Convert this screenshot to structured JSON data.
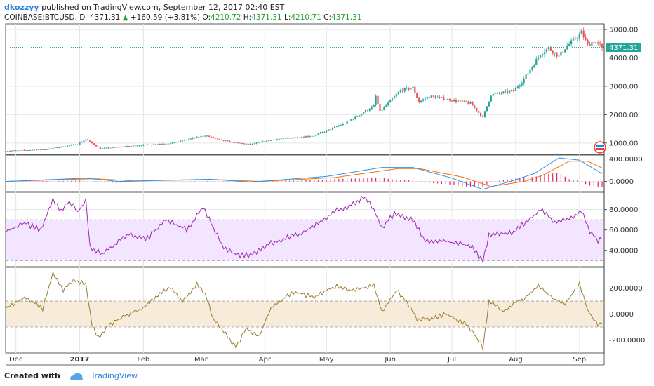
{
  "header": {
    "author": "dkozzyy",
    "published_text": "published on TradingView.com, September 12, 2017 02:40 EST",
    "symbol": "COINBASE:BTCUSD, D",
    "last": "4371.31",
    "change": "+160.59 (+3.81%)",
    "o_label": "O:",
    "o": "4210.72",
    "h_label": "H:",
    "h": "4371.31",
    "l_label": "L:",
    "l": "4210.71",
    "c_label": "C:",
    "c": "4371.31"
  },
  "footer": {
    "created_with": "Created with",
    "brand": "TradingView"
  },
  "colors": {
    "up": "#26a69a",
    "down": "#ef5350",
    "macd": "#2196f3",
    "signal": "#ff6d00",
    "hist": "#e91e63",
    "rsi": "#9c27b0",
    "rsi_band": "#f3e5ff",
    "cci": "#9c7a2c",
    "cci_band": "#f7ecd9",
    "last_price": "#26a69a"
  },
  "chart_data": [
    {
      "type": "candlestick",
      "name": "price",
      "y_ticks": [
        "1000.00",
        "2000.00",
        "3000.00",
        "4000.00",
        "5000.00"
      ],
      "y_range": [
        600,
        5200
      ],
      "last_price_label": "4371.31",
      "last_price": 4371.31,
      "x_labels": [
        "Dec",
        "2017",
        "Feb",
        "Mar",
        "Apr",
        "May",
        "Jun",
        "Jul",
        "Aug",
        "Sep"
      ],
      "x_label_dates": [
        "2016-12-01",
        "2017-01-01",
        "2017-02-01",
        "2017-03-01",
        "2017-04-01",
        "2017-05-01",
        "2017-06-01",
        "2017-07-01",
        "2017-08-01",
        "2017-09-01"
      ],
      "x_range": [
        "2016-11-26",
        "2017-09-13"
      ],
      "close_keypoints": [
        [
          "2016-11-26",
          720
        ],
        [
          "2016-12-15",
          770
        ],
        [
          "2016-12-31",
          960
        ],
        [
          "2017-01-04",
          1130
        ],
        [
          "2017-01-11",
          800
        ],
        [
          "2017-01-25",
          890
        ],
        [
          "2017-02-15",
          1000
        ],
        [
          "2017-03-03",
          1270
        ],
        [
          "2017-03-10",
          1110
        ],
        [
          "2017-03-17",
          1010
        ],
        [
          "2017-03-25",
          950
        ],
        [
          "2017-04-05",
          1120
        ],
        [
          "2017-04-25",
          1260
        ],
        [
          "2017-05-10",
          1700
        ],
        [
          "2017-05-24",
          2300
        ],
        [
          "2017-05-25",
          2650
        ],
        [
          "2017-05-27",
          2100
        ],
        [
          "2017-06-06",
          2850
        ],
        [
          "2017-06-12",
          2950
        ],
        [
          "2017-06-15",
          2450
        ],
        [
          "2017-06-20",
          2650
        ],
        [
          "2017-07-02",
          2500
        ],
        [
          "2017-07-10",
          2400
        ],
        [
          "2017-07-16",
          1900
        ],
        [
          "2017-07-20",
          2700
        ],
        [
          "2017-07-31",
          2850
        ],
        [
          "2017-08-05",
          3250
        ],
        [
          "2017-08-13",
          4150
        ],
        [
          "2017-08-17",
          4350
        ],
        [
          "2017-08-22",
          4050
        ],
        [
          "2017-08-25",
          4350
        ],
        [
          "2017-08-31",
          4750
        ],
        [
          "2017-09-02",
          4900
        ],
        [
          "2017-09-05",
          4450
        ],
        [
          "2017-09-08",
          4600
        ],
        [
          "2017-09-12",
          4371
        ]
      ]
    },
    {
      "type": "line",
      "name": "macd",
      "y_ticks": [
        "0.0000",
        "400.0000"
      ],
      "y_range": [
        -180,
        470
      ],
      "series": [
        "macd",
        "signal",
        "histogram"
      ],
      "macd_keypoints": [
        [
          "2016-11-26",
          0
        ],
        [
          "2017-01-04",
          60
        ],
        [
          "2017-01-20",
          0
        ],
        [
          "2017-03-05",
          40
        ],
        [
          "2017-03-25",
          -10
        ],
        [
          "2017-05-01",
          90
        ],
        [
          "2017-05-28",
          250
        ],
        [
          "2017-06-12",
          250
        ],
        [
          "2017-07-01",
          60
        ],
        [
          "2017-07-16",
          -140
        ],
        [
          "2017-07-31",
          20
        ],
        [
          "2017-08-10",
          140
        ],
        [
          "2017-08-22",
          420
        ],
        [
          "2017-09-01",
          380
        ],
        [
          "2017-09-12",
          140
        ]
      ],
      "signal_keypoints": [
        [
          "2016-11-26",
          0
        ],
        [
          "2017-01-08",
          50
        ],
        [
          "2017-01-28",
          10
        ],
        [
          "2017-03-08",
          35
        ],
        [
          "2017-03-30",
          0
        ],
        [
          "2017-05-05",
          70
        ],
        [
          "2017-06-05",
          230
        ],
        [
          "2017-06-15",
          230
        ],
        [
          "2017-07-06",
          80
        ],
        [
          "2017-07-20",
          -90
        ],
        [
          "2017-08-05",
          0
        ],
        [
          "2017-08-14",
          110
        ],
        [
          "2017-08-27",
          360
        ],
        [
          "2017-09-05",
          360
        ],
        [
          "2017-09-12",
          240
        ]
      ]
    },
    {
      "type": "line",
      "name": "rsi",
      "y_ticks": [
        "40.0000",
        "60.0000",
        "80.0000"
      ],
      "y_range": [
        24,
        97
      ],
      "band": [
        30,
        70
      ],
      "keypoints": [
        [
          "2016-11-26",
          58
        ],
        [
          "2016-12-05",
          67
        ],
        [
          "2016-12-13",
          60
        ],
        [
          "2016-12-19",
          90
        ],
        [
          "2016-12-23",
          78
        ],
        [
          "2016-12-27",
          88
        ],
        [
          "2016-12-31",
          78
        ],
        [
          "2017-01-04",
          89
        ],
        [
          "2017-01-06",
          44
        ],
        [
          "2017-01-12",
          36
        ],
        [
          "2017-01-18",
          46
        ],
        [
          "2017-01-25",
          55
        ],
        [
          "2017-02-03",
          52
        ],
        [
          "2017-02-12",
          70
        ],
        [
          "2017-02-22",
          60
        ],
        [
          "2017-03-02",
          82
        ],
        [
          "2017-03-06",
          66
        ],
        [
          "2017-03-12",
          43
        ],
        [
          "2017-03-18",
          36
        ],
        [
          "2017-03-25",
          35
        ],
        [
          "2017-04-04",
          47
        ],
        [
          "2017-04-20",
          58
        ],
        [
          "2017-05-05",
          78
        ],
        [
          "2017-05-15",
          86
        ],
        [
          "2017-05-19",
          93
        ],
        [
          "2017-05-24",
          81
        ],
        [
          "2017-05-28",
          62
        ],
        [
          "2017-06-03",
          76
        ],
        [
          "2017-06-12",
          70
        ],
        [
          "2017-06-18",
          50
        ],
        [
          "2017-06-30",
          48
        ],
        [
          "2017-07-10",
          45
        ],
        [
          "2017-07-16",
          29
        ],
        [
          "2017-07-19",
          54
        ],
        [
          "2017-07-31",
          58
        ],
        [
          "2017-08-05",
          66
        ],
        [
          "2017-08-13",
          80
        ],
        [
          "2017-08-20",
          68
        ],
        [
          "2017-08-28",
          72
        ],
        [
          "2017-09-02",
          80
        ],
        [
          "2017-09-06",
          58
        ],
        [
          "2017-09-10",
          50
        ],
        [
          "2017-09-12",
          53
        ]
      ]
    },
    {
      "type": "line",
      "name": "cci",
      "y_ticks": [
        "-200.0000",
        "0.0000",
        "200.0000"
      ],
      "y_range": [
        -300,
        360
      ],
      "band": [
        -100,
        100
      ],
      "keypoints": [
        [
          "2016-11-26",
          50
        ],
        [
          "2016-12-06",
          130
        ],
        [
          "2016-12-14",
          40
        ],
        [
          "2016-12-19",
          320
        ],
        [
          "2016-12-24",
          180
        ],
        [
          "2016-12-29",
          260
        ],
        [
          "2017-01-04",
          230
        ],
        [
          "2017-01-07",
          -80
        ],
        [
          "2017-01-10",
          -180
        ],
        [
          "2017-01-15",
          -90
        ],
        [
          "2017-01-22",
          -20
        ],
        [
          "2017-02-01",
          50
        ],
        [
          "2017-02-08",
          150
        ],
        [
          "2017-02-14",
          200
        ],
        [
          "2017-02-20",
          100
        ],
        [
          "2017-02-27",
          230
        ],
        [
          "2017-03-03",
          160
        ],
        [
          "2017-03-07",
          -40
        ],
        [
          "2017-03-13",
          -150
        ],
        [
          "2017-03-18",
          -260
        ],
        [
          "2017-03-23",
          -110
        ],
        [
          "2017-03-29",
          -180
        ],
        [
          "2017-04-04",
          50
        ],
        [
          "2017-04-15",
          170
        ],
        [
          "2017-04-25",
          130
        ],
        [
          "2017-05-06",
          220
        ],
        [
          "2017-05-14",
          180
        ],
        [
          "2017-05-24",
          220
        ],
        [
          "2017-05-28",
          20
        ],
        [
          "2017-06-04",
          180
        ],
        [
          "2017-06-08",
          120
        ],
        [
          "2017-06-14",
          -40
        ],
        [
          "2017-06-20",
          -40
        ],
        [
          "2017-06-28",
          0
        ],
        [
          "2017-07-08",
          -80
        ],
        [
          "2017-07-14",
          -200
        ],
        [
          "2017-07-16",
          -260
        ],
        [
          "2017-07-19",
          100
        ],
        [
          "2017-07-26",
          20
        ],
        [
          "2017-07-31",
          80
        ],
        [
          "2017-08-06",
          130
        ],
        [
          "2017-08-12",
          220
        ],
        [
          "2017-08-19",
          120
        ],
        [
          "2017-08-25",
          80
        ],
        [
          "2017-09-01",
          230
        ],
        [
          "2017-09-05",
          30
        ],
        [
          "2017-09-10",
          -90
        ],
        [
          "2017-09-12",
          -60
        ]
      ]
    }
  ]
}
